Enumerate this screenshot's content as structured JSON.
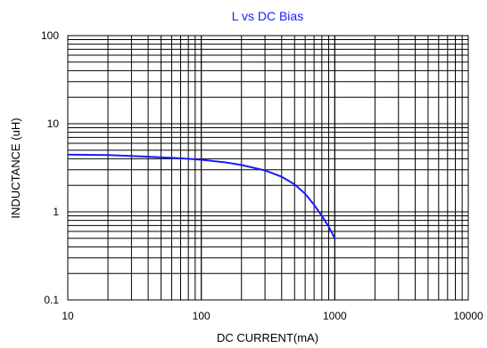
{
  "chart_data": {
    "type": "line",
    "title": "L vs DC Bias",
    "xlabel": "DC CURRENT(mA)",
    "ylabel": "INDUCTANCE (uH)",
    "x_scale": "log",
    "y_scale": "log",
    "xlim": [
      10,
      10000
    ],
    "ylim": [
      0.1,
      100
    ],
    "x_ticks": [
      "10",
      "100",
      "1000",
      "10000"
    ],
    "y_ticks": [
      "0.1",
      "1",
      "10",
      "100"
    ],
    "grid": true,
    "legend": "none",
    "series": [
      {
        "color": "#1a1aff",
        "x": [
          10,
          20,
          30,
          50,
          70,
          100,
          150,
          200,
          300,
          400,
          500,
          600,
          700,
          800,
          900,
          1000
        ],
        "y": [
          4.45,
          4.4,
          4.3,
          4.15,
          4.05,
          3.9,
          3.65,
          3.4,
          2.95,
          2.5,
          2.05,
          1.6,
          1.2,
          0.9,
          0.68,
          0.5
        ]
      }
    ],
    "colors": {
      "title": "#1a1aff",
      "grid": "#000000",
      "line": "#1a1aff"
    }
  }
}
